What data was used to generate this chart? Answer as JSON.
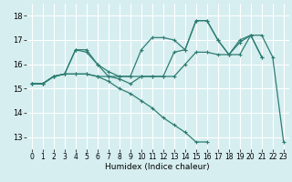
{
  "title": "",
  "xlabel": "Humidex (Indice chaleur)",
  "bg_color": "#d6eef0",
  "line_color": "#2e7d72",
  "grid_color": "#ffffff",
  "xlim": [
    -0.5,
    23.5
  ],
  "ylim": [
    12.5,
    18.5
  ],
  "xticks": [
    0,
    1,
    2,
    3,
    4,
    5,
    6,
    7,
    8,
    9,
    10,
    11,
    12,
    13,
    14,
    15,
    16,
    17,
    18,
    19,
    20,
    21,
    22,
    23
  ],
  "yticks": [
    13,
    14,
    15,
    16,
    17,
    18
  ],
  "series": [
    [
      15.2,
      15.2,
      15.5,
      15.6,
      16.6,
      16.6,
      16.0,
      15.7,
      15.5,
      15.5,
      16.6,
      17.1,
      17.1,
      17.0,
      16.6,
      17.8,
      17.8,
      17.0,
      16.4,
      17.0,
      17.2,
      16.3,
      null,
      null
    ],
    [
      15.2,
      15.2,
      15.5,
      15.6,
      16.6,
      16.5,
      16.0,
      15.5,
      15.4,
      15.2,
      15.5,
      15.5,
      15.5,
      16.5,
      16.6,
      17.8,
      17.8,
      17.0,
      16.4,
      16.9,
      17.2,
      16.3,
      null,
      null
    ],
    [
      15.2,
      15.2,
      15.5,
      15.6,
      15.6,
      15.6,
      15.5,
      15.3,
      15.0,
      14.8,
      14.5,
      14.2,
      13.8,
      13.5,
      13.2,
      12.8,
      12.8,
      null,
      null,
      null,
      null,
      null,
      null,
      null
    ],
    [
      15.2,
      15.2,
      15.5,
      15.6,
      15.6,
      15.6,
      15.5,
      15.5,
      15.5,
      15.5,
      15.5,
      15.5,
      15.5,
      15.5,
      16.0,
      16.5,
      16.5,
      16.4,
      16.4,
      16.4,
      17.2,
      17.2,
      16.3,
      12.8
    ]
  ],
  "xlabel_fontsize": 6.5,
  "tick_fontsize": 5.5,
  "ytick_fontsize": 6.0
}
